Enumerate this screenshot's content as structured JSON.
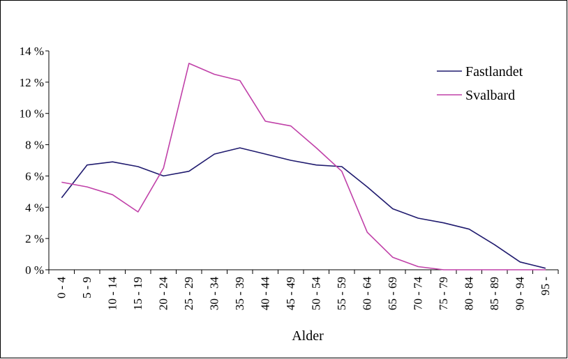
{
  "chart_data": {
    "type": "line",
    "title": "",
    "xlabel": "Alder",
    "ylabel": "",
    "categories": [
      "0 - 4",
      "5 - 9",
      "10 - 14",
      "15 - 19",
      "20 - 24",
      "25 - 29",
      "30 - 34",
      "35 - 39",
      "40 - 44",
      "45 - 49",
      "50 - 54",
      "55 - 59",
      "60 - 64",
      "65 - 69",
      "70 - 74",
      "75 - 79",
      "80 - 84",
      "85 - 89",
      "90 - 94",
      "95 -"
    ],
    "yticks": [
      "0 %",
      "2 %",
      "4 %",
      "6 %",
      "8 %",
      "10 %",
      "12 %",
      "14 %"
    ],
    "ylim": [
      0,
      14
    ],
    "grid": false,
    "legend_position": "top-right",
    "series": [
      {
        "name": "Fastlandet",
        "color": "#1f1a6e",
        "values": [
          4.6,
          6.7,
          6.9,
          6.6,
          6.0,
          6.3,
          7.4,
          7.8,
          7.4,
          7.0,
          6.7,
          6.6,
          5.3,
          3.9,
          3.3,
          3.0,
          2.6,
          1.6,
          0.5,
          0.1
        ]
      },
      {
        "name": "Svalbard",
        "color": "#c040a8",
        "values": [
          5.6,
          5.3,
          4.8,
          3.7,
          6.5,
          13.2,
          12.5,
          12.1,
          9.5,
          9.2,
          7.8,
          6.3,
          2.4,
          0.8,
          0.2,
          0.0,
          0.0,
          0.0,
          0.0,
          0.0
        ]
      }
    ]
  }
}
